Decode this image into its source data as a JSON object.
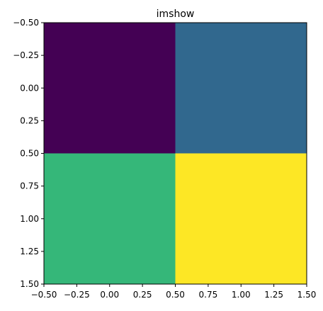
{
  "chart_data": {
    "type": "heatmap",
    "title": "imshow",
    "xlabel": "",
    "ylabel": "",
    "x": [
      0,
      1
    ],
    "y": [
      0,
      1
    ],
    "values": [
      [
        0,
        1
      ],
      [
        2,
        3
      ]
    ],
    "colors": [
      [
        "#440154",
        "#31688e"
      ],
      [
        "#35b779",
        "#fde725"
      ]
    ],
    "colormap": "viridis",
    "xlim": [
      -0.5,
      1.5
    ],
    "ylim": [
      1.5,
      -0.5
    ],
    "xticks": [
      "−0.50",
      "−0.25",
      "0.00",
      "0.25",
      "0.50",
      "0.75",
      "1.00",
      "1.25",
      "1.50"
    ],
    "yticks": [
      "−0.50",
      "−0.25",
      "0.00",
      "0.25",
      "0.50",
      "0.75",
      "1.00",
      "1.25",
      "1.50"
    ],
    "grid": false,
    "legend": "none"
  }
}
